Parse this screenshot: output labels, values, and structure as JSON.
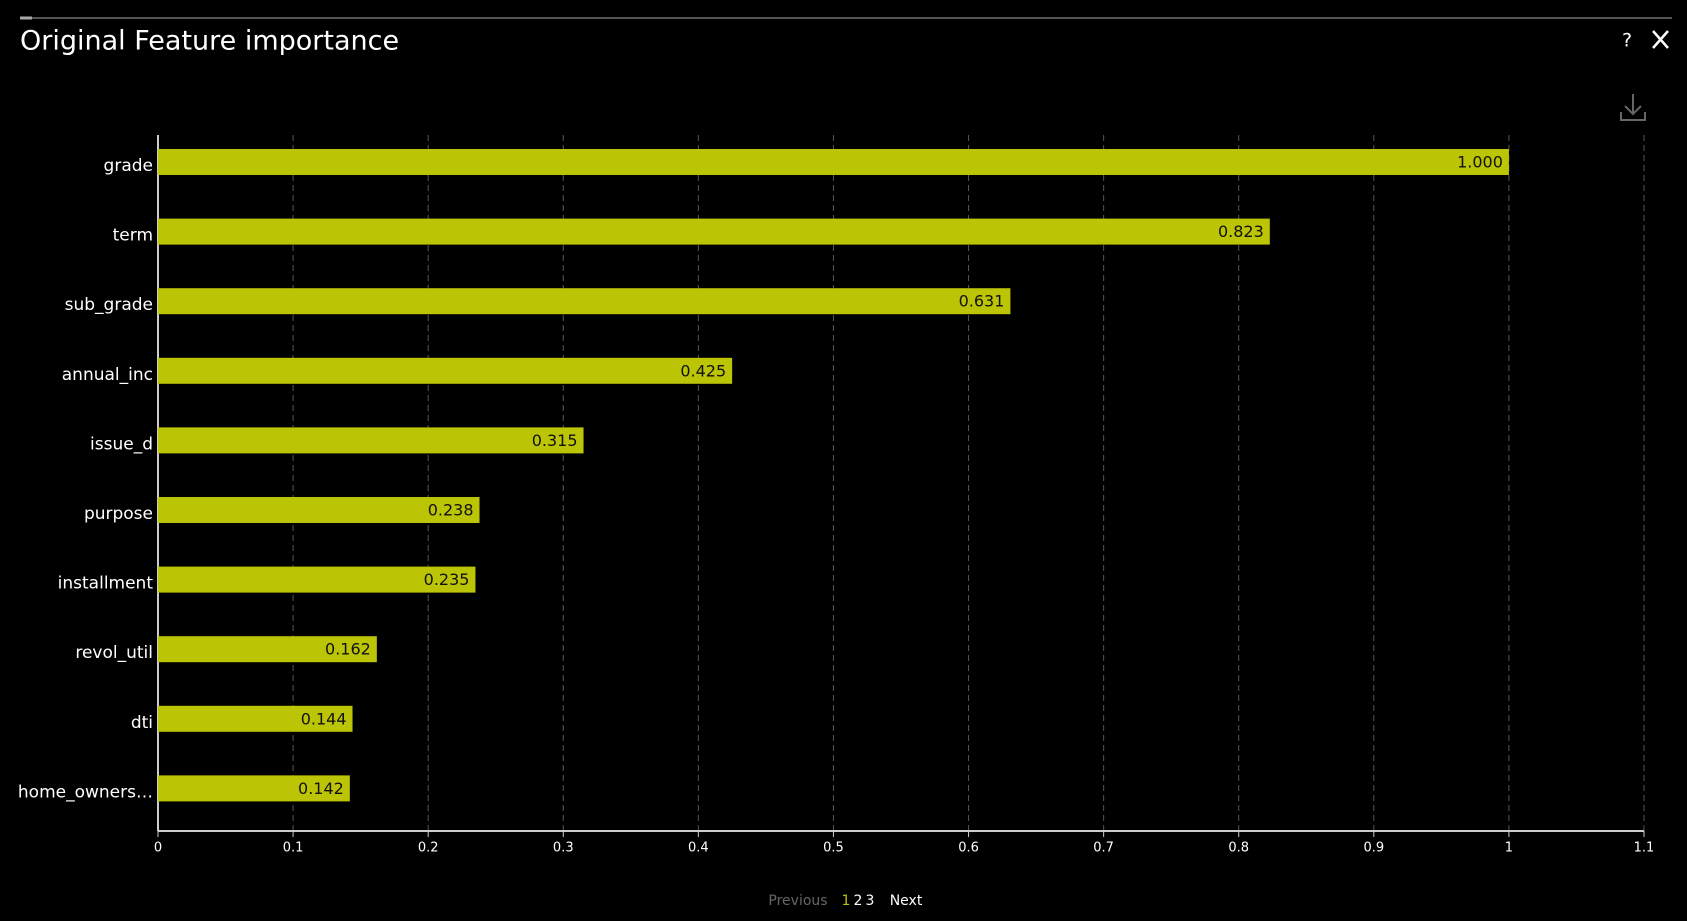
{
  "header": {
    "title": "Original Feature importance",
    "help": "?"
  },
  "chart_data": {
    "type": "bar",
    "orientation": "horizontal",
    "categories": [
      "grade",
      "term",
      "sub_grade",
      "annual_inc",
      "issue_d",
      "purpose",
      "installment",
      "revol_util",
      "dti",
      "home_owners…"
    ],
    "values": [
      1.0,
      0.823,
      0.631,
      0.425,
      0.315,
      0.238,
      0.235,
      0.162,
      0.144,
      0.142
    ],
    "value_labels": [
      "1.000",
      "0.823",
      "0.631",
      "0.425",
      "0.315",
      "0.238",
      "0.235",
      "0.162",
      "0.144",
      "0.142"
    ],
    "color": "#bcc406",
    "xlim": [
      0,
      1.1
    ],
    "xticks": [
      0,
      0.1,
      0.2,
      0.3,
      0.4,
      0.5,
      0.6,
      0.7,
      0.8,
      0.9,
      1,
      1.1
    ],
    "grid": true
  },
  "pagination": {
    "previous": "Previous",
    "pages": [
      "1",
      "2",
      "3"
    ],
    "current": 0,
    "next": "Next"
  }
}
